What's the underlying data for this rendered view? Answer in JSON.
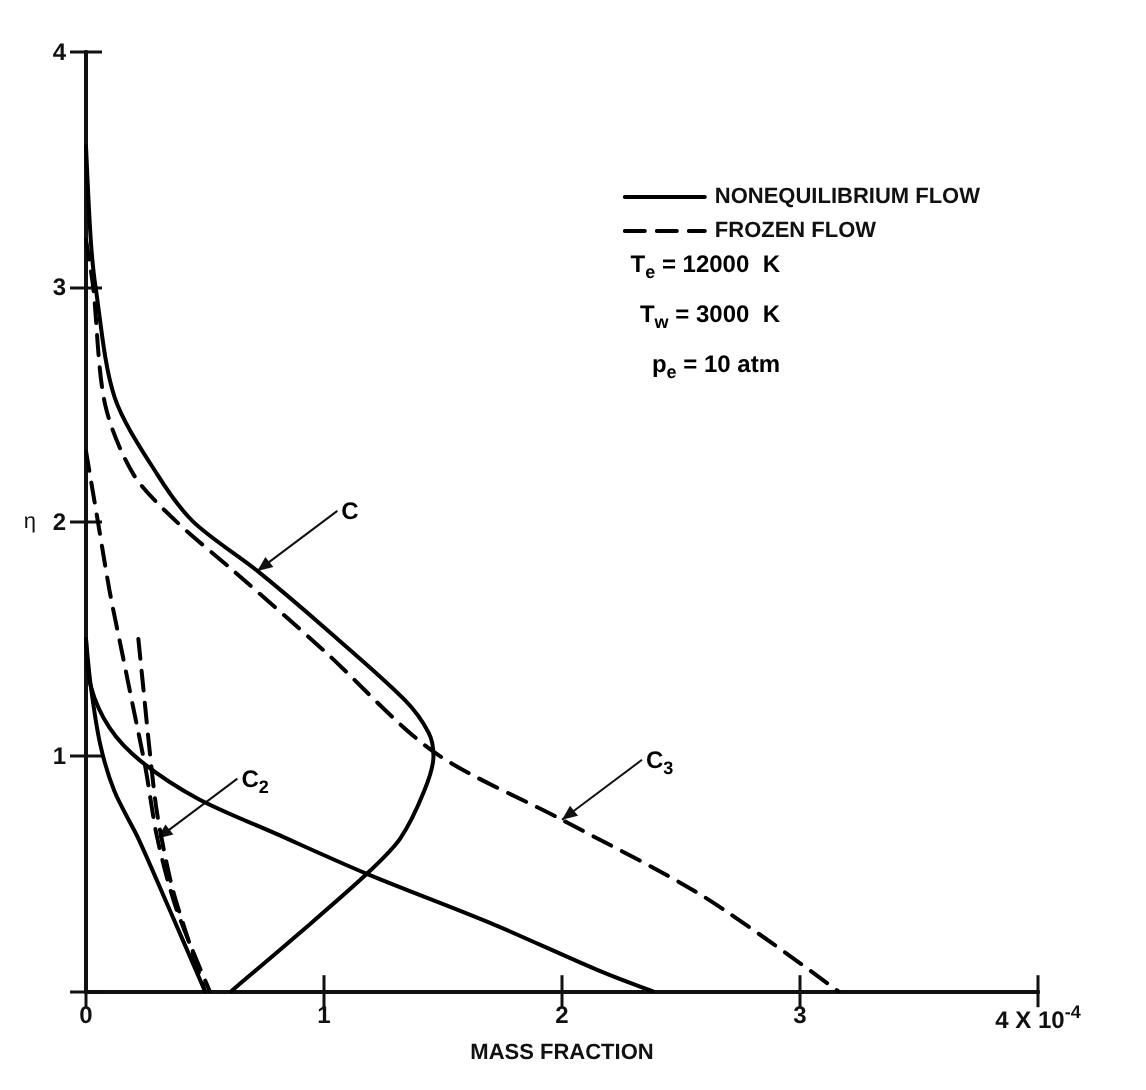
{
  "chart_data": {
    "type": "line",
    "xlabel": "MASS FRACTION",
    "ylabel": "η",
    "xlim": [
      0,
      4
    ],
    "ylim": [
      0,
      4
    ],
    "xticks": [
      0,
      1,
      2,
      3,
      {
        "value": 4,
        "label": "4 X 10$^{-4}$"
      }
    ],
    "yticks": [
      {
        "value": 0,
        "label": null
      },
      1,
      2,
      3,
      4
    ],
    "legend": "top right",
    "grid": false,
    "marker": "none",
    "series": [
      {
        "name": "NONEQUILIBRIUM FLOW",
        "color": "#000000",
        "line_style": "solid",
        "x": [
          0,
          0.02,
          0.04,
          0.12,
          0.3,
          0.45,
          0.72,
          1.0,
          1.34,
          1.44,
          1.46,
          1.42,
          1.32,
          1.18,
          0.9,
          0.61
        ],
        "values": [
          3.6,
          3.2,
          3.0,
          2.53,
          2.2,
          2.0,
          1.79,
          1.55,
          1.24,
          1.1,
          1.0,
          0.85,
          0.65,
          0.5,
          0.25,
          0
        ]
      },
      {
        "color": "#000000",
        "line_style": "solid",
        "x": [
          0,
          0.02,
          0.06,
          0.12,
          0.22,
          0.35,
          0.5
        ],
        "values": [
          1.5,
          1.3,
          1.05,
          0.85,
          0.65,
          0.35,
          0
        ]
      },
      {
        "color": "#000000",
        "line_style": "solid",
        "x": [
          0,
          0.02,
          0.1,
          0.23,
          0.47,
          0.8,
          1.18,
          1.7,
          2.15,
          2.38
        ],
        "values": [
          1.5,
          1.3,
          1.12,
          0.98,
          0.82,
          0.67,
          0.5,
          0.29,
          0.09,
          0
        ]
      },
      {
        "name": "FROZEN FLOW",
        "color": "#000000",
        "line_style": "dashed",
        "x": [
          0,
          0.03,
          0.08,
          0.2,
          0.38,
          0.62,
          1.0,
          1.46,
          2.0,
          2.6,
          3.16
        ],
        "values": [
          3.2,
          3.0,
          2.5,
          2.2,
          2.0,
          1.79,
          1.45,
          1.02,
          0.73,
          0.4,
          0
        ]
      },
      {
        "color": "#000000",
        "line_style": "dashed",
        "x": [
          0,
          0.05,
          0.1,
          0.15,
          0.2,
          0.25,
          0.3,
          0.38,
          0.52
        ],
        "values": [
          2.3,
          2.0,
          1.7,
          1.45,
          1.2,
          0.95,
          0.65,
          0.35,
          0
        ]
      },
      {
        "color": "#000000",
        "line_style": "dashed",
        "x": [
          0.22,
          0.24,
          0.27,
          0.3,
          0.36,
          0.42,
          0.5
        ],
        "values": [
          1.5,
          1.3,
          1.0,
          0.75,
          0.45,
          0.25,
          0
        ]
      }
    ],
    "annotations": [
      "T$_{e}$ = 12000  K",
      "T$_{w}$ = 3000  K",
      "p$_{e}$ = 10 atm",
      {
        "text": "C",
        "x": 0.72,
        "y": 1.79
      },
      {
        "text": "C$_{2}$",
        "x": 0.3,
        "y": 0.65
      },
      {
        "text": "C$_{3}$",
        "x": 2.0,
        "y": 0.73
      }
    ]
  }
}
